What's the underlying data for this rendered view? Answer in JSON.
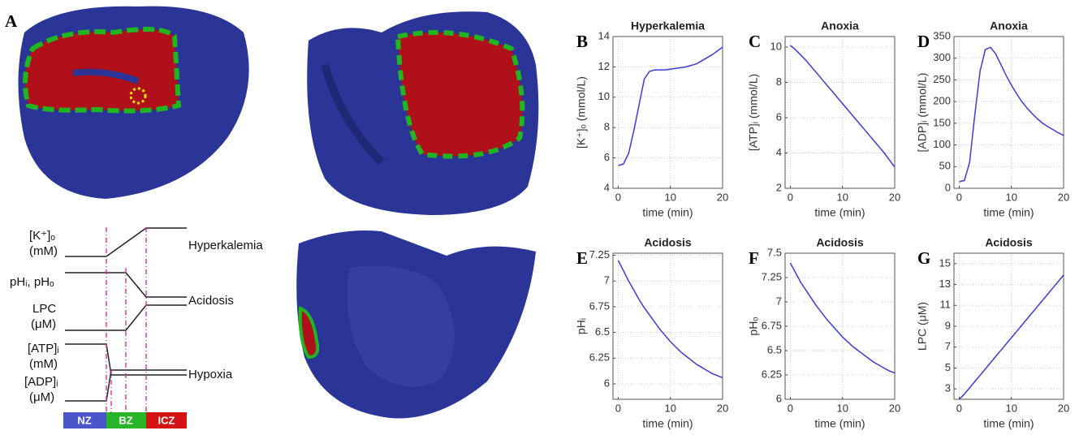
{
  "chart_data": [
    {
      "type": "line",
      "panel": "B",
      "title": "Hyperkalemia",
      "xlabel": "time (min)",
      "ylabel": "[K⁺]ₒ (mmol/L)",
      "x": [
        0,
        1,
        2,
        3,
        4,
        5,
        6,
        7,
        8,
        9,
        10,
        11,
        12,
        13,
        14,
        15,
        16,
        17,
        18,
        19,
        20
      ],
      "series": [
        {
          "color": "#3b3bdb",
          "values": [
            5.5,
            5.6,
            6.3,
            7.8,
            9.5,
            11.2,
            11.7,
            11.8,
            11.8,
            11.8,
            11.85,
            11.9,
            11.95,
            12.0,
            12.1,
            12.2,
            12.4,
            12.6,
            12.8,
            13.05,
            13.3
          ]
        }
      ],
      "xlim": [
        -1,
        20
      ],
      "xticks": [
        0,
        10,
        20
      ],
      "ylim": [
        4,
        14
      ],
      "yticks": [
        4,
        6,
        8,
        10,
        12,
        14
      ],
      "grid": true
    },
    {
      "type": "line",
      "panel": "C",
      "title": "Anoxia",
      "xlabel": "time (min)",
      "ylabel": "[ATP]ᵢ (mmol/L)",
      "x": [
        0,
        1,
        2,
        3,
        4,
        5,
        6,
        7,
        8,
        9,
        10,
        11,
        12,
        13,
        14,
        15,
        16,
        17,
        18,
        19,
        20
      ],
      "series": [
        {
          "color": "#3b3bdb",
          "values": [
            10.1,
            9.85,
            9.55,
            9.25,
            8.9,
            8.55,
            8.2,
            7.85,
            7.5,
            7.15,
            6.8,
            6.45,
            6.1,
            5.75,
            5.4,
            5.05,
            4.7,
            4.35,
            4.0,
            3.6,
            3.2
          ]
        }
      ],
      "xlim": [
        -1,
        20
      ],
      "xticks": [
        0,
        10,
        20
      ],
      "ylim": [
        2,
        10.6
      ],
      "yticks": [
        2,
        4,
        6,
        8,
        10
      ],
      "grid": true
    },
    {
      "type": "line",
      "panel": "D",
      "title": "Anoxia",
      "xlabel": "time (min)",
      "ylabel": "[ADP]ᵢ (mmol/L)",
      "x": [
        0,
        1,
        2,
        3,
        4,
        5,
        6,
        7,
        8,
        9,
        10,
        11,
        12,
        13,
        14,
        15,
        16,
        17,
        18,
        19,
        20
      ],
      "series": [
        {
          "color": "#3b3bdb",
          "values": [
            15,
            18,
            60,
            170,
            270,
            320,
            325,
            310,
            285,
            260,
            238,
            218,
            200,
            185,
            172,
            160,
            150,
            142,
            135,
            128,
            122
          ]
        }
      ],
      "xlim": [
        -1,
        20
      ],
      "xticks": [
        0,
        10,
        20
      ],
      "ylim": [
        0,
        350
      ],
      "yticks": [
        0,
        50,
        100,
        150,
        200,
        250,
        300,
        350
      ],
      "grid": true
    },
    {
      "type": "line",
      "panel": "E",
      "title": "Acidosis",
      "xlabel": "time (min)",
      "ylabel": "pHᵢ",
      "x": [
        0,
        1,
        2,
        3,
        4,
        5,
        6,
        7,
        8,
        9,
        10,
        11,
        12,
        13,
        14,
        15,
        16,
        17,
        18,
        19,
        20
      ],
      "series": [
        {
          "color": "#3b3bdb",
          "values": [
            7.2,
            7.1,
            7.0,
            6.91,
            6.82,
            6.74,
            6.67,
            6.6,
            6.53,
            6.47,
            6.41,
            6.36,
            6.31,
            6.27,
            6.23,
            6.19,
            6.16,
            6.13,
            6.1,
            6.08,
            6.06
          ]
        }
      ],
      "xlim": [
        -1,
        20
      ],
      "xticks": [
        0,
        10,
        20
      ],
      "ylim": [
        5.85,
        7.27
      ],
      "yticks": [
        6,
        6.25,
        6.5,
        6.75,
        7,
        7.25
      ],
      "grid": true
    },
    {
      "type": "line",
      "panel": "F",
      "title": "Acidosis",
      "xlabel": "time (min)",
      "ylabel": "pHₒ",
      "x": [
        0,
        1,
        2,
        3,
        4,
        5,
        6,
        7,
        8,
        9,
        10,
        11,
        12,
        13,
        14,
        15,
        16,
        17,
        18,
        19,
        20
      ],
      "series": [
        {
          "color": "#3b3bdb",
          "values": [
            7.4,
            7.3,
            7.2,
            7.12,
            7.04,
            6.96,
            6.89,
            6.82,
            6.76,
            6.7,
            6.64,
            6.59,
            6.54,
            6.5,
            6.46,
            6.42,
            6.38,
            6.35,
            6.32,
            6.29,
            6.27
          ]
        }
      ],
      "xlim": [
        -1,
        20
      ],
      "xticks": [
        0,
        10,
        20
      ],
      "ylim": [
        6,
        7.5
      ],
      "yticks": [
        6,
        6.25,
        6.5,
        6.75,
        7,
        7.25,
        7.5
      ],
      "grid": true
    },
    {
      "type": "line",
      "panel": "G",
      "title": "Acidosis",
      "xlabel": "time (min)",
      "ylabel": "LPC (μM)",
      "x": [
        0,
        1,
        2,
        3,
        4,
        5,
        6,
        7,
        8,
        9,
        10,
        11,
        12,
        13,
        14,
        15,
        16,
        17,
        18,
        19,
        20
      ],
      "series": [
        {
          "color": "#3b3bdb",
          "values": [
            2.0,
            2.5,
            3.1,
            3.7,
            4.3,
            4.9,
            5.5,
            6.1,
            6.7,
            7.3,
            7.9,
            8.5,
            9.1,
            9.7,
            10.3,
            10.9,
            11.5,
            12.1,
            12.7,
            13.3,
            13.9
          ]
        }
      ],
      "xlim": [
        -1,
        20
      ],
      "xticks": [
        0,
        10,
        20
      ],
      "ylim": [
        2,
        16
      ],
      "yticks": [
        3,
        5,
        7,
        9,
        11,
        13,
        15
      ],
      "grid": true
    }
  ],
  "schematic": {
    "panel": "A",
    "rows": [
      {
        "name": "[K⁺]ₒ",
        "unit": "(mM)"
      },
      {
        "name": "pHᵢ, pHₒ"
      },
      {
        "name": "LPC",
        "unit": "(μM)"
      },
      {
        "name": "[ATP]ᵢ",
        "unit": "(mM)"
      },
      {
        "name": "[ADP]ᵢ",
        "unit": "(μM)"
      }
    ],
    "effects": [
      "Hyperkalemia",
      "Acidosis",
      "Hypoxia"
    ],
    "zones": [
      "NZ",
      "BZ",
      "ICZ"
    ]
  }
}
